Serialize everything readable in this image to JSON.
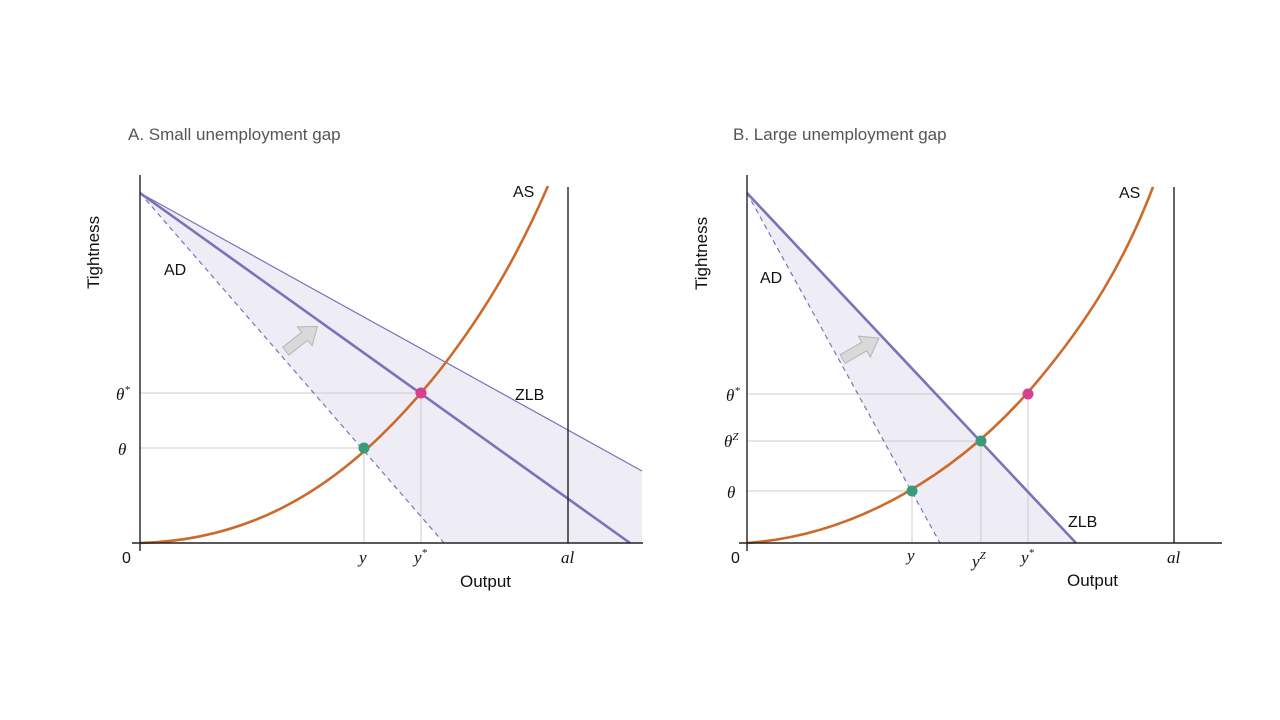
{
  "colors": {
    "as_curve": "#cc6a2c",
    "ad_line": "#7b72b8",
    "shade": "#eeedf6",
    "guide": "#cccccc",
    "axis": "#222222",
    "point_star": "#d6408c",
    "point_eq": "#3a9a7a",
    "arrow_fill": "#d9d9d9",
    "arrow_stroke": "#b5b5b5"
  },
  "panels": [
    {
      "title": "A. Small unemployment gap",
      "ylabel": "Tightness",
      "xlabel": "Output",
      "origin": "0",
      "labels": {
        "as": "AS",
        "ad": "AD",
        "zlb": "ZLB",
        "theta_star_base": "θ",
        "theta_star_sup": "*",
        "theta_base": "θ",
        "y_base": "y",
        "y_star_base": "y",
        "y_star_sup": "*",
        "al": "al"
      }
    },
    {
      "title": "B. Large unemployment gap",
      "ylabel": "Tightness",
      "xlabel": "Output",
      "origin": "0",
      "labels": {
        "as": "AS",
        "ad": "AD",
        "zlb": "ZLB",
        "theta_star_base": "θ",
        "theta_star_sup": "*",
        "theta_z_base": "θ",
        "theta_z_sup": "Z",
        "theta_base": "θ",
        "y_base": "y",
        "y_z_base": "y",
        "y_z_sup": "Z",
        "y_star_base": "y",
        "y_star_sup": "*",
        "al": "al"
      }
    }
  ]
}
